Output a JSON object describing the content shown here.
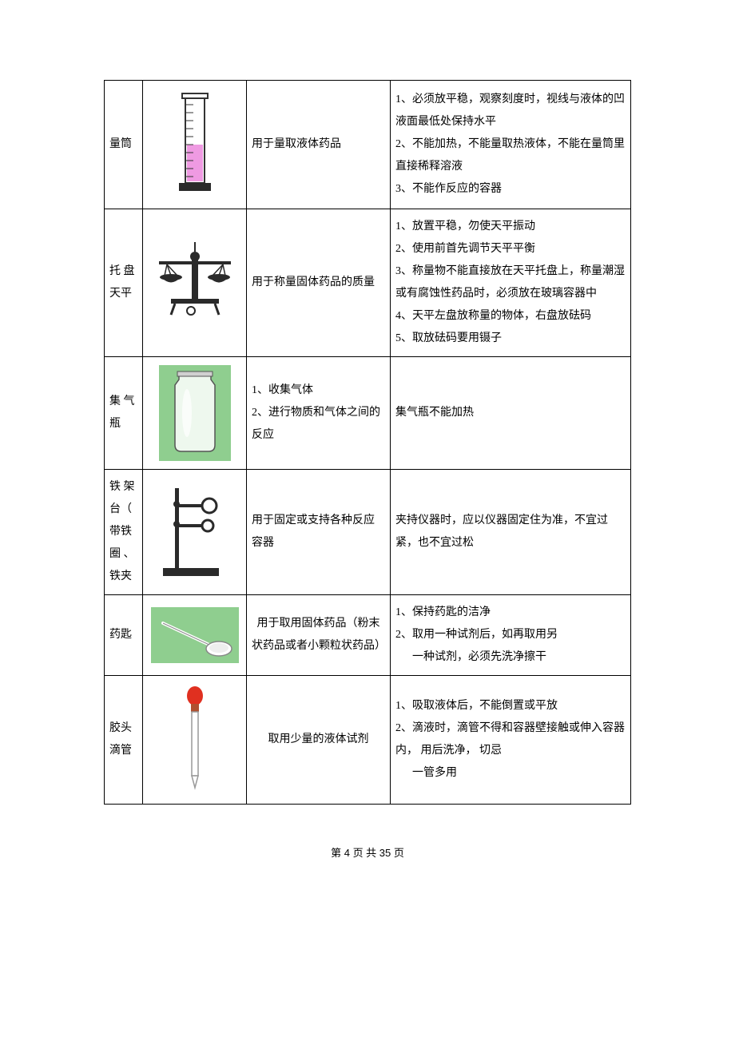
{
  "rows": [
    {
      "name": "量筒",
      "use_lines": [
        "用于量取液体药品"
      ],
      "use_align": "left",
      "notes": [
        {
          "t": "1、必须放平稳，观察刻度时，视线与液体的凹液面最低处保持水平"
        },
        {
          "t": "2、不能加热，不能量取热液体，不能在量筒里直接稀释溶液"
        },
        {
          "t": "3、不能作反应的容器"
        }
      ],
      "svg": "cylinder"
    },
    {
      "name": "托 盘天平",
      "use_lines": [
        "用于称量固体药品的质量"
      ],
      "use_align": "left",
      "notes": [
        {
          "t": "1、放置平稳，勿使天平振动"
        },
        {
          "t": "2、使用前首先调节天平平衡"
        },
        {
          "t": "3、称量物不能直接放在天平托盘上，称量潮湿或有腐蚀性药品时，必须放在玻璃容器中"
        },
        {
          "t": "4、天平左盘放称量的物体，右盘放砝码"
        },
        {
          "t": "5、取放砝码要用镊子"
        }
      ],
      "svg": "balance"
    },
    {
      "name": "集 气瓶",
      "use_lines": [
        "1、收集气体",
        "2、进行物质和气体之间的反应"
      ],
      "use_align": "left",
      "notes": [
        {
          "t": "集气瓶不能加热"
        }
      ],
      "svg": "jar"
    },
    {
      "name": "铁 架台（ 带铁圈 、铁夹",
      "use_lines": [
        "用于固定或支持各种反应容器"
      ],
      "use_align": "left",
      "notes": [
        {
          "t": "夹持仪器时，应以仪器固定住为准，不宜过紧，也不宜过松"
        }
      ],
      "svg": "stand"
    },
    {
      "name": "药匙",
      "use_lines": [
        "用于取用固体药品（粉末状药品或者小颗粒状药品）"
      ],
      "use_align": "center",
      "notes": [
        {
          "t": "1、保持药匙的洁净"
        },
        {
          "t": "2、取用一种试剂后，如再取用另"
        },
        {
          "t": "一种试剂，必须先洗净擦干",
          "indent": true
        }
      ],
      "svg": "spoon"
    },
    {
      "name": "胶头滴管",
      "use_lines": [
        "取用少量的液体试剂"
      ],
      "use_align": "center",
      "notes": [
        {
          "t": "1、吸取液体后，不能倒置或平放"
        },
        {
          "t": "2、滴液时，滴管不得和容器壁接触或伸入容器内， 用后洗净， 切忌"
        },
        {
          "t": "一管多用",
          "indent": true
        }
      ],
      "svg": "dropper"
    }
  ],
  "footer": {
    "prefix": "第 ",
    "page": "4",
    "mid": " 页 共 ",
    "total": "35",
    "suffix": " 页"
  },
  "colors": {
    "green_bg": "#8fce8f",
    "pink": "#e86fd6",
    "red": "#e03020",
    "dark": "#2a2a2a",
    "gray": "#808080",
    "lightgray": "#d0d0d0",
    "white": "#ffffff"
  }
}
